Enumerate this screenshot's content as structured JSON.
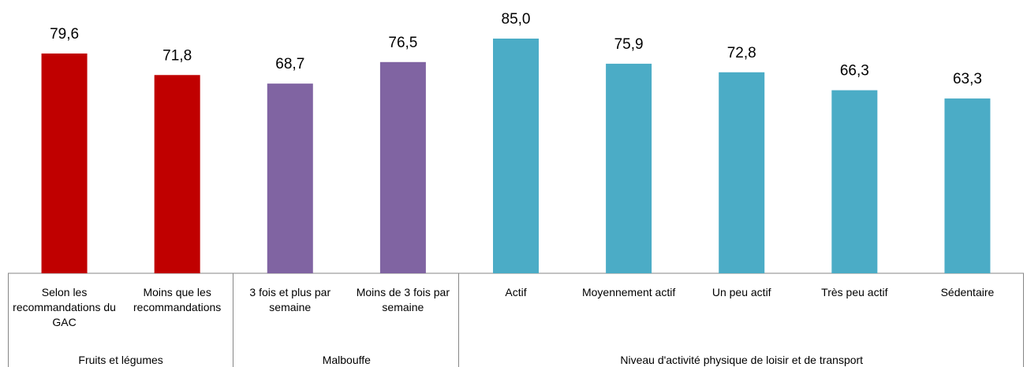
{
  "chart_data": {
    "type": "bar",
    "groups": [
      {
        "label": "Fruits et légumes",
        "color": "#c00000",
        "categories": [
          "Selon les recommandations du GAC",
          "Moins que les recommandations"
        ],
        "values": [
          79.6,
          71.8
        ],
        "value_labels": [
          "79,6",
          "71,8"
        ]
      },
      {
        "label": "Malbouffe",
        "color": "#8064a2",
        "categories": [
          "3 fois et plus par semaine",
          "Moins de 3 fois par semaine"
        ],
        "values": [
          68.7,
          76.5
        ],
        "value_labels": [
          "68,7",
          "76,5"
        ]
      },
      {
        "label": "Niveau d'activité physique de loisir et de transport",
        "color": "#4bacc6",
        "categories": [
          "Actif",
          "Moyennement actif",
          "Un peu actif",
          "Très peu actif",
          "Sédentaire"
        ],
        "values": [
          85.0,
          75.9,
          72.8,
          66.3,
          63.3
        ],
        "value_labels": [
          "85,0",
          "75,9",
          "72,8",
          "66,3",
          "63,3"
        ]
      }
    ]
  }
}
